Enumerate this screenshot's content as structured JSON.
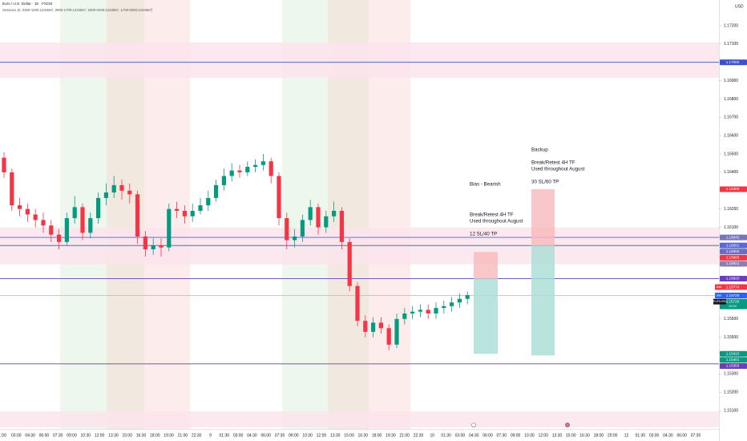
{
  "chart_data": {
    "type": "candlestick",
    "title": "Euro / U.S. Dollar · 15 · FXCM",
    "subtitle": "Sessions (0, 0300-1200:1234567, 0800-1700:1234567, 2000-0400:1234567, 1700-0000:1234567)",
    "currency": "USD",
    "ylim": [
      1.15,
      1.1734
    ],
    "yticks": [
      {
        "value": 1.172,
        "label": "1.17200"
      },
      {
        "value": 1.171,
        "label": "1.17100"
      },
      {
        "value": 1.169,
        "label": "1.16900"
      },
      {
        "value": 1.168,
        "label": "1.16800"
      },
      {
        "value": 1.167,
        "label": "1.16700"
      },
      {
        "value": 1.166,
        "label": "1.16600"
      },
      {
        "value": 1.165,
        "label": "1.16500"
      },
      {
        "value": 1.164,
        "label": "1.16400"
      },
      {
        "value": 1.162,
        "label": "1.16200"
      },
      {
        "value": 1.161,
        "label": "1.16100"
      },
      {
        "value": 1.156,
        "label": "1.15600"
      },
      {
        "value": 1.155,
        "label": "1.15500"
      },
      {
        "value": 1.153,
        "label": "1.15300"
      },
      {
        "value": 1.152,
        "label": "1.15200"
      },
      {
        "value": 1.151,
        "label": "1.15100"
      }
    ],
    "time_labels": [
      "1:00",
      "03:00",
      "04:30",
      "06:00",
      "07:30",
      "09:00",
      "10:30",
      "12:00",
      "13:30",
      "15:00",
      "16:30",
      "18:00",
      "19:30",
      "21:00",
      "22:30",
      "9",
      "01:30",
      "03:00",
      "04:30",
      "06:00",
      "07:30",
      "09:00",
      "10:30",
      "12:00",
      "13:30",
      "15:00",
      "16:30",
      "18:00",
      "19:30",
      "21:00",
      "22:30",
      "10",
      "01:30",
      "03:00",
      "04:30",
      "06:00",
      "07:30",
      "09:00",
      "10:30",
      "12:00",
      "13:30",
      "15:00",
      "16:30",
      "18:00",
      "20:00",
      "12",
      "01:30",
      "03:00",
      "04:30",
      "06:00",
      "07:30"
    ],
    "up_color": "#089981",
    "down_color": "#f23645",
    "open": [
      1.1648,
      1.164,
      1.1622,
      1.162,
      1.1617,
      1.1614,
      1.1611,
      1.1606,
      1.1602,
      1.1615,
      1.1621,
      1.1607,
      1.1615,
      1.1626,
      1.1629,
      1.1633,
      1.163,
      1.1628,
      1.1605,
      1.1598,
      1.16,
      1.1599,
      1.162,
      1.1619,
      1.1616,
      1.1619,
      1.1622,
      1.1626,
      1.1633,
      1.1638,
      1.1641,
      1.164,
      1.1643,
      1.1644,
      1.1646,
      1.1638,
      1.1615,
      1.1603,
      1.1605,
      1.1614,
      1.1621,
      1.161,
      1.1616,
      1.1619,
      1.1602,
      1.1578,
      1.1559,
      1.1553,
      1.1558,
      1.1555,
      1.1546,
      1.156,
      1.1563,
      1.1564,
      1.1565,
      1.1563,
      1.1566,
      1.1567,
      1.1569,
      1.1571
    ],
    "high": [
      1.1651,
      1.1642,
      1.1626,
      1.1623,
      1.162,
      1.1618,
      1.1614,
      1.1609,
      1.1618,
      1.1627,
      1.1623,
      1.1618,
      1.1629,
      1.1634,
      1.1638,
      1.1636,
      1.1634,
      1.163,
      1.1608,
      1.1604,
      1.1604,
      1.1623,
      1.1624,
      1.1622,
      1.1623,
      1.1626,
      1.163,
      1.1636,
      1.1642,
      1.1645,
      1.1644,
      1.1646,
      1.1647,
      1.165,
      1.1648,
      1.164,
      1.1618,
      1.1609,
      1.1617,
      1.1625,
      1.1623,
      1.1619,
      1.1624,
      1.1621,
      1.1604,
      1.158,
      1.1562,
      1.1561,
      1.1561,
      1.1557,
      1.1563,
      1.1566,
      1.1567,
      1.1568,
      1.1568,
      1.1569,
      1.157,
      1.1572,
      1.1574,
      1.1575
    ],
    "low": [
      1.1637,
      1.1619,
      1.1616,
      1.1613,
      1.161,
      1.1607,
      1.1602,
      1.1598,
      1.16,
      1.1612,
      1.1603,
      1.1604,
      1.1612,
      1.1622,
      1.1626,
      1.1625,
      1.1623,
      1.1601,
      1.1594,
      1.1595,
      1.1594,
      1.1597,
      1.1615,
      1.1612,
      1.1613,
      1.1617,
      1.1619,
      1.1624,
      1.163,
      1.1635,
      1.1637,
      1.1638,
      1.164,
      1.1641,
      1.1634,
      1.1611,
      1.1598,
      1.1599,
      1.1602,
      1.1611,
      1.1606,
      1.1607,
      1.1613,
      1.1598,
      1.1575,
      1.1556,
      1.155,
      1.155,
      1.1552,
      1.1543,
      1.1544,
      1.1557,
      1.156,
      1.1561,
      1.156,
      1.156,
      1.1563,
      1.1564,
      1.1566,
      1.1568
    ],
    "close": [
      1.164,
      1.1622,
      1.162,
      1.1617,
      1.1614,
      1.1611,
      1.1606,
      1.1602,
      1.1615,
      1.1621,
      1.1607,
      1.1615,
      1.1626,
      1.1629,
      1.1633,
      1.163,
      1.1628,
      1.1605,
      1.1598,
      1.16,
      1.1599,
      1.162,
      1.1619,
      1.1616,
      1.1619,
      1.1622,
      1.1626,
      1.1633,
      1.1638,
      1.1641,
      1.164,
      1.1643,
      1.1644,
      1.1646,
      1.1638,
      1.1615,
      1.1603,
      1.1605,
      1.1614,
      1.1621,
      1.161,
      1.1616,
      1.1619,
      1.1602,
      1.1578,
      1.1559,
      1.1553,
      1.1558,
      1.1555,
      1.1546,
      1.156,
      1.1563,
      1.1564,
      1.1565,
      1.1563,
      1.1566,
      1.1567,
      1.1569,
      1.1571,
      1.1573
    ],
    "zones": [
      {
        "from": 1.17108,
        "to": 1.16916
      },
      {
        "from": 1.16099,
        "to": 1.15898
      },
      {
        "from": 1.15096,
        "to": 1.15009
      }
    ],
    "levels": [
      {
        "value": 1.17,
        "color": "#3d50c7"
      },
      {
        "value": 1.16045,
        "color": "#5a5fc8"
      },
      {
        "value": 1.16001,
        "color": "#3d50c7"
      },
      {
        "value": 1.1582,
        "color": "#6a3fb8"
      },
      {
        "value": 1.15355,
        "color": "#6a3fb8"
      },
      {
        "value": 1.15728,
        "color": "#f7a8b8"
      }
    ],
    "positions": [
      {
        "stop": 1.15965,
        "entry": 1.1582,
        "target": 1.1541
      },
      {
        "stop": 1.16308,
        "entry": 1.16,
        "target": 1.15401
      }
    ],
    "annotations": [
      "Bias - Bearish",
      "Break/Retest 4H TF",
      "Used throughout August",
      "12 SL/40 TP",
      "Backup",
      "Break/Retest 4H TF",
      "Used throughout August",
      "30 SL/60 TP"
    ],
    "price_tags": [
      {
        "value": 1.17,
        "label": "1.17000",
        "color": "#3d50c7"
      },
      {
        "value": 1.16308,
        "label": "1.16308",
        "color": "#f23645"
      },
      {
        "value": 1.16045,
        "label": "1.16045",
        "color": "#7b74b6"
      },
      {
        "value": 1.16001,
        "label": "1.16001",
        "color": "#5a6ad0"
      },
      {
        "value": 1.16,
        "label": "1.16000",
        "color": "#6c6cc0"
      },
      {
        "value": 1.15965,
        "label": "1.15965",
        "color": "#f23645"
      },
      {
        "value": 1.15921,
        "label": "1.15921",
        "color": "#8a80b0"
      },
      {
        "value": 1.1582,
        "label": "1.15820",
        "color": "#6a3fb8"
      },
      {
        "name": "Ask",
        "value": 1.15774,
        "label": "1.15774",
        "color": "#f23645"
      },
      {
        "name": "Bid",
        "value": 1.15728,
        "label": "1.15728",
        "color": "#2962ff"
      },
      {
        "name": "EURUSD",
        "value": 1.15728,
        "label": "1.15728",
        "sub": "10:04",
        "color": "#089981"
      },
      {
        "value": 1.1541,
        "label": "1.15410",
        "color": "#089981"
      },
      {
        "value": 1.15401,
        "label": "1.15401",
        "color": "#089981"
      },
      {
        "value": 1.15355,
        "label": "1.15355",
        "color": "#6a3fb8"
      }
    ]
  }
}
